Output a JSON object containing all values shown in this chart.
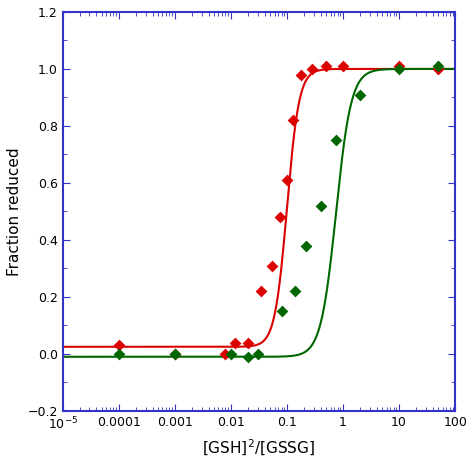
{
  "title": "",
  "xlabel": "[GSH]$^2$/[GSSG]",
  "ylabel": "Fraction reduced",
  "xlim": [
    1e-05,
    100
  ],
  "ylim": [
    -0.2,
    1.2
  ],
  "yticks": [
    -0.2,
    0.0,
    0.2,
    0.4,
    0.6,
    0.8,
    1.0,
    1.2
  ],
  "red_data_x": [
    0.0001,
    0.001,
    0.008,
    0.012,
    0.02,
    0.035,
    0.055,
    0.075,
    0.1,
    0.13,
    0.18,
    0.28,
    0.5,
    1.0,
    10,
    50
  ],
  "red_data_y": [
    0.03,
    0.0,
    0.0,
    0.04,
    0.04,
    0.22,
    0.31,
    0.48,
    0.61,
    0.82,
    0.98,
    1.0,
    1.01,
    1.01,
    1.01,
    1.0
  ],
  "green_data_x": [
    0.0001,
    0.001,
    0.01,
    0.02,
    0.03,
    0.08,
    0.14,
    0.22,
    0.4,
    0.75,
    2.0,
    10,
    50
  ],
  "green_data_y": [
    0.0,
    0.0,
    0.0,
    -0.01,
    0.0,
    0.15,
    0.22,
    0.38,
    0.52,
    0.75,
    0.91,
    1.0,
    1.01
  ],
  "red_hill_K": 0.1,
  "red_hill_n": 4.0,
  "red_hill_base": 0.025,
  "green_hill_K": 0.75,
  "green_hill_n": 3.2,
  "green_hill_base": -0.01,
  "red_color": "#dd0000",
  "green_color": "#006600",
  "axis_color": "#3333cc",
  "marker": "D",
  "marker_size": 6,
  "line_width": 1.5,
  "bg_color": "#ffffff",
  "fig_width": 4.74,
  "fig_height": 4.65,
  "dpi": 100
}
